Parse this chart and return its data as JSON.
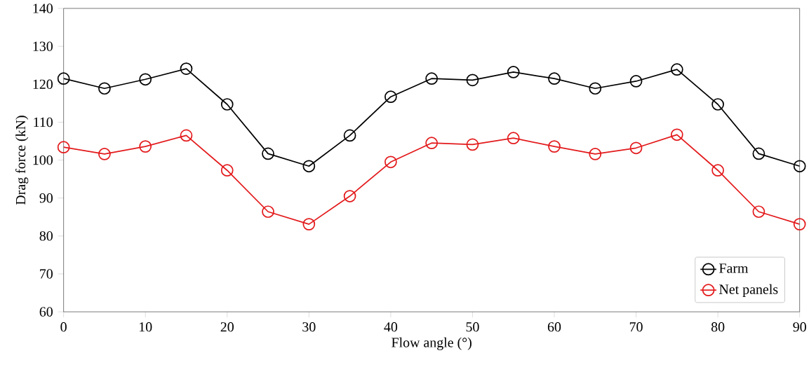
{
  "chart_data": {
    "type": "line",
    "xlabel": "Flow angle (°)",
    "ylabel": "Drag force (kN)",
    "x": [
      0,
      5,
      10,
      15,
      20,
      25,
      30,
      35,
      40,
      45,
      50,
      55,
      60,
      65,
      70,
      75,
      80,
      85,
      90
    ],
    "series": [
      {
        "name": "Farm",
        "color": "#000000",
        "values": [
          121.5,
          118.9,
          121.3,
          124.1,
          114.7,
          101.7,
          98.4,
          106.5,
          116.7,
          121.5,
          121.1,
          123.2,
          121.5,
          118.9,
          120.8,
          123.9,
          114.7,
          101.7,
          98.4
        ]
      },
      {
        "name": "Net panels",
        "color": "#e31a1c",
        "values": [
          103.4,
          101.6,
          103.6,
          106.5,
          97.3,
          86.4,
          83.1,
          90.5,
          99.5,
          104.5,
          104.1,
          105.8,
          103.6,
          101.6,
          103.2,
          106.7,
          97.3,
          86.4,
          83.1
        ]
      }
    ],
    "xlim": [
      0,
      90
    ],
    "ylim": [
      60,
      140
    ],
    "xticks": [
      0,
      10,
      20,
      30,
      40,
      50,
      60,
      70,
      80,
      90
    ],
    "yticks": [
      60,
      70,
      80,
      90,
      100,
      110,
      120,
      130,
      140
    ],
    "marker": "circle",
    "line_style": "solid",
    "legend": "bottom right",
    "grid": false
  }
}
